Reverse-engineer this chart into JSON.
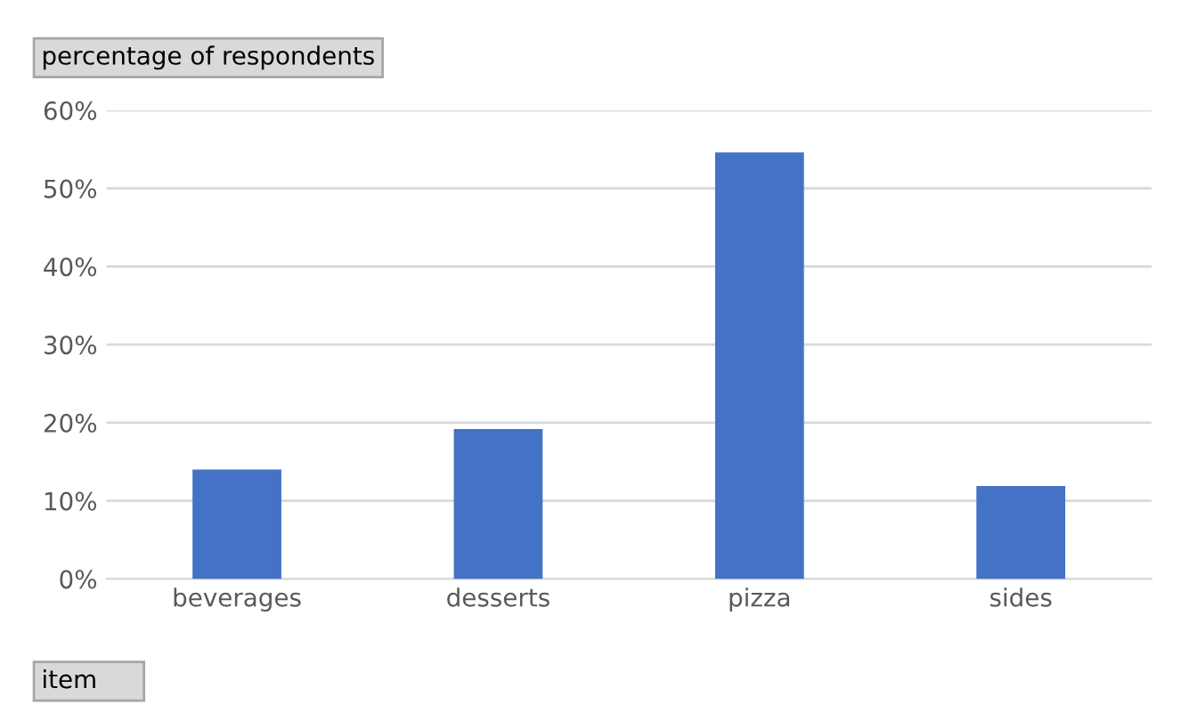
{
  "chart_data": {
    "type": "bar",
    "ylabel": "percentage of respondents",
    "xlabel": "item",
    "categories": [
      "beverages",
      "desserts",
      "pizza",
      "sides"
    ],
    "values": [
      14,
      19.2,
      54.6,
      11.9
    ],
    "color": "#4472c4",
    "ylim": [
      0,
      60
    ],
    "yticks": [
      {
        "value": 0,
        "label": "0%"
      },
      {
        "value": 10,
        "label": "10%"
      },
      {
        "value": 20,
        "label": "20%"
      },
      {
        "value": 30,
        "label": "30%"
      },
      {
        "value": 40,
        "label": "40%"
      },
      {
        "value": 50,
        "label": "50%"
      },
      {
        "value": 60,
        "label": "60%"
      }
    ],
    "grid": "y"
  }
}
